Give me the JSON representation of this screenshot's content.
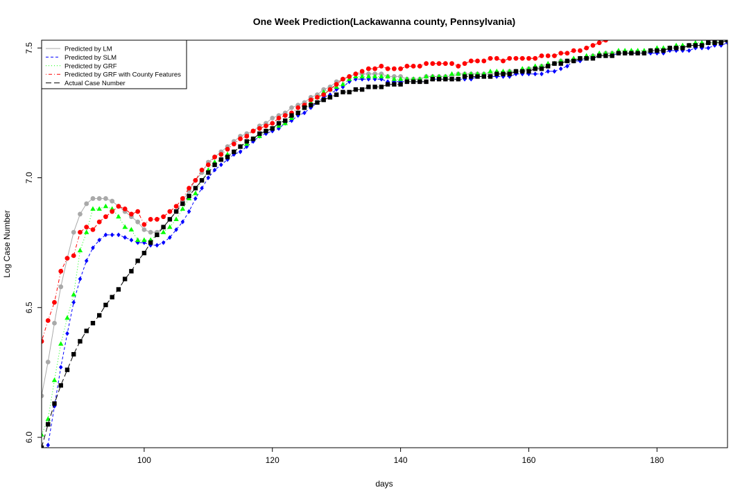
{
  "chart_data": {
    "type": "scatter",
    "title": "One Week Prediction(Lackawanna county, Pennsylvania)",
    "xlabel": "days",
    "ylabel": "Log Case Number",
    "xlim": [
      84,
      191
    ],
    "ylim": [
      5.96,
      7.53
    ],
    "xticks": [
      100,
      120,
      140,
      160,
      180
    ],
    "yticks": [
      6.0,
      6.5,
      7.0,
      7.5
    ],
    "xtick_labels": [
      "100",
      "120",
      "140",
      "160",
      "180"
    ],
    "ytick_labels": [
      "6.0",
      "6.5",
      "7.0",
      "7.5"
    ],
    "legend_position": "top-left",
    "grid": false,
    "series": [
      {
        "name": "Predicted by LM",
        "color": "#a9a9a9",
        "marker": "circle",
        "line": "solid",
        "x": [
          84,
          85,
          86,
          87,
          88,
          89,
          90,
          91,
          92,
          93,
          94,
          95,
          96,
          97,
          98,
          99,
          100,
          101,
          102,
          103,
          104,
          105,
          106,
          107,
          108,
          109,
          110,
          111,
          112,
          113,
          114,
          115,
          116,
          117,
          118,
          119,
          120,
          121,
          122,
          123,
          124,
          125,
          126,
          127,
          128,
          129,
          130,
          131,
          132,
          133,
          134,
          135,
          136,
          137,
          138,
          139,
          140,
          141,
          142,
          143,
          144,
          145,
          146,
          147,
          148,
          149,
          150,
          151,
          152,
          153,
          154,
          155,
          156,
          157,
          158,
          159,
          160,
          161,
          162,
          163,
          164,
          165,
          166,
          167,
          168,
          169,
          170,
          171,
          172,
          173,
          174,
          175,
          176,
          177,
          178,
          179,
          180,
          181,
          182,
          183,
          184,
          185,
          186,
          187,
          188,
          189,
          190,
          191
        ],
        "y": [
          6.16,
          6.29,
          6.44,
          6.58,
          6.69,
          6.79,
          6.86,
          6.9,
          6.92,
          6.92,
          6.92,
          6.91,
          6.89,
          6.87,
          6.85,
          6.83,
          6.8,
          6.79,
          6.79,
          6.81,
          6.84,
          6.87,
          6.91,
          6.95,
          6.99,
          7.02,
          7.06,
          7.08,
          7.1,
          7.12,
          7.14,
          7.16,
          7.17,
          7.18,
          7.2,
          7.21,
          7.23,
          7.24,
          7.25,
          7.27,
          7.28,
          7.29,
          7.31,
          7.32,
          7.34,
          7.35,
          7.37,
          7.38,
          7.39,
          7.4,
          7.4,
          7.4,
          7.4,
          7.4,
          7.39,
          7.39,
          7.39,
          7.38,
          7.38,
          7.38,
          7.39,
          7.39,
          7.39,
          7.39,
          7.39,
          7.4,
          7.4,
          7.4,
          7.4,
          7.4,
          7.4,
          7.4,
          7.4,
          7.41,
          7.41,
          7.41,
          7.42,
          7.42,
          7.43,
          7.43,
          7.44,
          7.45,
          7.45,
          7.45,
          7.46,
          7.46,
          7.47,
          7.47,
          7.48,
          7.48,
          7.48,
          7.48,
          7.48,
          7.48,
          7.48,
          7.49,
          7.49,
          7.49,
          7.5,
          7.5,
          7.5,
          7.51,
          7.51,
          7.51,
          7.52,
          7.52,
          7.52,
          7.53
        ]
      },
      {
        "name": "Predicted by SLM",
        "color": "#0000ff",
        "marker": "diamond",
        "line": "dashed",
        "x": [
          84,
          85,
          86,
          87,
          88,
          89,
          90,
          91,
          92,
          93,
          94,
          95,
          96,
          97,
          98,
          99,
          100,
          101,
          102,
          103,
          104,
          105,
          106,
          107,
          108,
          109,
          110,
          111,
          112,
          113,
          114,
          115,
          116,
          117,
          118,
          119,
          120,
          121,
          122,
          123,
          124,
          125,
          126,
          127,
          128,
          129,
          130,
          131,
          132,
          133,
          134,
          135,
          136,
          137,
          138,
          139,
          140,
          141,
          142,
          143,
          144,
          145,
          146,
          147,
          148,
          149,
          150,
          151,
          152,
          153,
          154,
          155,
          156,
          157,
          158,
          159,
          160,
          161,
          162,
          163,
          164,
          165,
          166,
          167,
          168,
          169,
          170,
          171,
          172,
          173,
          174,
          175,
          176,
          177,
          178,
          179,
          180,
          181,
          182,
          183,
          184,
          185,
          186,
          187,
          188,
          189,
          190,
          191
        ],
        "y": [
          5.94,
          5.97,
          6.12,
          6.27,
          6.4,
          6.52,
          6.61,
          6.68,
          6.73,
          6.76,
          6.78,
          6.78,
          6.78,
          6.77,
          6.76,
          6.75,
          6.75,
          6.74,
          6.74,
          6.75,
          6.77,
          6.8,
          6.83,
          6.87,
          6.92,
          6.96,
          7.0,
          7.03,
          7.05,
          7.07,
          7.09,
          7.1,
          7.12,
          7.14,
          7.16,
          7.17,
          7.18,
          7.19,
          7.21,
          7.22,
          7.24,
          7.25,
          7.27,
          7.29,
          7.31,
          7.32,
          7.34,
          7.35,
          7.37,
          7.38,
          7.38,
          7.38,
          7.38,
          7.38,
          7.37,
          7.37,
          7.37,
          7.37,
          7.37,
          7.37,
          7.37,
          7.38,
          7.38,
          7.38,
          7.38,
          7.38,
          7.38,
          7.38,
          7.39,
          7.39,
          7.39,
          7.39,
          7.39,
          7.39,
          7.4,
          7.4,
          7.4,
          7.4,
          7.4,
          7.41,
          7.41,
          7.42,
          7.43,
          7.45,
          7.45,
          7.46,
          7.46,
          7.47,
          7.47,
          7.47,
          7.48,
          7.48,
          7.48,
          7.48,
          7.48,
          7.48,
          7.48,
          7.48,
          7.49,
          7.49,
          7.49,
          7.49,
          7.5,
          7.5,
          7.5,
          7.51,
          7.51,
          7.52
        ]
      },
      {
        "name": "Predicted by GRF",
        "color": "#00ff00",
        "marker": "triangle",
        "line": "dotted",
        "x": [
          84,
          85,
          86,
          87,
          88,
          89,
          90,
          91,
          92,
          93,
          94,
          95,
          96,
          97,
          98,
          99,
          100,
          101,
          102,
          103,
          104,
          105,
          106,
          107,
          108,
          109,
          110,
          111,
          112,
          113,
          114,
          115,
          116,
          117,
          118,
          119,
          120,
          121,
          122,
          123,
          124,
          125,
          126,
          127,
          128,
          129,
          130,
          131,
          132,
          133,
          134,
          135,
          136,
          137,
          138,
          139,
          140,
          141,
          142,
          143,
          144,
          145,
          146,
          147,
          148,
          149,
          150,
          151,
          152,
          153,
          154,
          155,
          156,
          157,
          158,
          159,
          160,
          161,
          162,
          163,
          164,
          165,
          166,
          167,
          168,
          169,
          170,
          171,
          172,
          173,
          174,
          175,
          176,
          177,
          178,
          179,
          180,
          181,
          182,
          183,
          184,
          185,
          186,
          187,
          188,
          189,
          190,
          191
        ],
        "y": [
          6.01,
          6.07,
          6.22,
          6.36,
          6.46,
          6.55,
          6.72,
          6.79,
          6.88,
          6.88,
          6.89,
          6.88,
          6.85,
          6.81,
          6.8,
          6.76,
          6.76,
          6.76,
          6.78,
          6.79,
          6.81,
          6.84,
          6.88,
          6.92,
          6.94,
          6.99,
          7.03,
          7.06,
          7.07,
          7.09,
          7.1,
          7.12,
          7.13,
          7.15,
          7.16,
          7.18,
          7.19,
          7.2,
          7.21,
          7.23,
          7.25,
          7.27,
          7.29,
          7.31,
          7.33,
          7.34,
          7.35,
          7.36,
          7.38,
          7.39,
          7.39,
          7.39,
          7.39,
          7.39,
          7.39,
          7.38,
          7.38,
          7.38,
          7.38,
          7.38,
          7.39,
          7.39,
          7.39,
          7.39,
          7.4,
          7.4,
          7.4,
          7.4,
          7.4,
          7.4,
          7.41,
          7.41,
          7.41,
          7.41,
          7.41,
          7.42,
          7.42,
          7.43,
          7.43,
          7.44,
          7.44,
          7.45,
          7.45,
          7.46,
          7.46,
          7.47,
          7.47,
          7.48,
          7.48,
          7.48,
          7.49,
          7.49,
          7.49,
          7.49,
          7.49,
          7.49,
          7.5,
          7.5,
          7.5,
          7.51,
          7.51,
          7.51,
          7.52,
          7.52,
          7.52,
          7.52,
          7.53,
          7.53
        ]
      },
      {
        "name": "Predicted by GRF with County Features",
        "color": "#ff0000",
        "marker": "circle",
        "line": "dotdash",
        "x": [
          84,
          85,
          86,
          87,
          88,
          89,
          90,
          91,
          92,
          93,
          94,
          95,
          96,
          97,
          98,
          99,
          100,
          101,
          102,
          103,
          104,
          105,
          106,
          107,
          108,
          109,
          110,
          111,
          112,
          113,
          114,
          115,
          116,
          117,
          118,
          119,
          120,
          121,
          122,
          123,
          124,
          125,
          126,
          127,
          128,
          129,
          130,
          131,
          132,
          133,
          134,
          135,
          136,
          137,
          138,
          139,
          140,
          141,
          142,
          143,
          144,
          145,
          146,
          147,
          148,
          149,
          150,
          151,
          152,
          153,
          154,
          155,
          156,
          157,
          158,
          159,
          160,
          161,
          162,
          163,
          164,
          165,
          166,
          167,
          168,
          169,
          170,
          171,
          172
        ],
        "y": [
          6.37,
          6.45,
          6.52,
          6.64,
          6.69,
          6.7,
          6.79,
          6.81,
          6.8,
          6.83,
          6.85,
          6.87,
          6.89,
          6.88,
          6.86,
          6.87,
          6.82,
          6.84,
          6.84,
          6.85,
          6.87,
          6.89,
          6.92,
          6.96,
          6.99,
          7.03,
          7.05,
          7.08,
          7.09,
          7.11,
          7.13,
          7.15,
          7.16,
          7.18,
          7.19,
          7.2,
          7.21,
          7.23,
          7.24,
          7.25,
          7.27,
          7.28,
          7.3,
          7.31,
          7.32,
          7.34,
          7.36,
          7.38,
          7.39,
          7.4,
          7.41,
          7.42,
          7.42,
          7.43,
          7.42,
          7.42,
          7.42,
          7.43,
          7.43,
          7.43,
          7.44,
          7.44,
          7.44,
          7.44,
          7.44,
          7.43,
          7.44,
          7.45,
          7.45,
          7.45,
          7.46,
          7.46,
          7.45,
          7.46,
          7.46,
          7.46,
          7.46,
          7.46,
          7.47,
          7.47,
          7.47,
          7.48,
          7.48,
          7.49,
          7.49,
          7.5,
          7.51,
          7.52,
          7.53
        ]
      },
      {
        "name": "Actual Case Number",
        "color": "#000000",
        "marker": "square",
        "line": "longdash",
        "x": [
          84,
          85,
          86,
          87,
          88,
          89,
          90,
          91,
          92,
          93,
          94,
          95,
          96,
          97,
          98,
          99,
          100,
          101,
          102,
          103,
          104,
          105,
          106,
          107,
          108,
          109,
          110,
          111,
          112,
          113,
          114,
          115,
          116,
          117,
          118,
          119,
          120,
          121,
          122,
          123,
          124,
          125,
          126,
          127,
          128,
          129,
          130,
          131,
          132,
          133,
          134,
          135,
          136,
          137,
          138,
          139,
          140,
          141,
          142,
          143,
          144,
          145,
          146,
          147,
          148,
          149,
          150,
          151,
          152,
          153,
          154,
          155,
          156,
          157,
          158,
          159,
          160,
          161,
          162,
          163,
          164,
          165,
          166,
          167,
          168,
          169,
          170,
          171,
          172,
          173,
          174,
          175,
          176,
          177,
          178,
          179,
          180,
          181,
          182,
          183,
          184,
          185,
          186,
          187,
          188,
          189,
          190,
          191
        ],
        "y": [
          5.96,
          6.05,
          6.13,
          6.2,
          6.26,
          6.32,
          6.37,
          6.41,
          6.44,
          6.47,
          6.51,
          6.54,
          6.57,
          6.61,
          6.64,
          6.68,
          6.71,
          6.75,
          6.78,
          6.81,
          6.84,
          6.87,
          6.9,
          6.93,
          6.96,
          6.99,
          7.02,
          7.05,
          7.07,
          7.08,
          7.1,
          7.12,
          7.14,
          7.15,
          7.17,
          7.18,
          7.19,
          7.21,
          7.22,
          7.24,
          7.25,
          7.27,
          7.28,
          7.29,
          7.3,
          7.31,
          7.32,
          7.33,
          7.33,
          7.34,
          7.34,
          7.35,
          7.35,
          7.35,
          7.36,
          7.36,
          7.36,
          7.37,
          7.37,
          7.37,
          7.37,
          7.38,
          7.38,
          7.38,
          7.38,
          7.38,
          7.39,
          7.39,
          7.39,
          7.39,
          7.39,
          7.4,
          7.4,
          7.4,
          7.41,
          7.41,
          7.41,
          7.42,
          7.42,
          7.43,
          7.44,
          7.44,
          7.45,
          7.45,
          7.46,
          7.46,
          7.46,
          7.47,
          7.47,
          7.47,
          7.48,
          7.48,
          7.48,
          7.48,
          7.48,
          7.49,
          7.49,
          7.49,
          7.5,
          7.5,
          7.5,
          7.51,
          7.51,
          7.51,
          7.52,
          7.52,
          7.52,
          7.53
        ]
      }
    ]
  }
}
